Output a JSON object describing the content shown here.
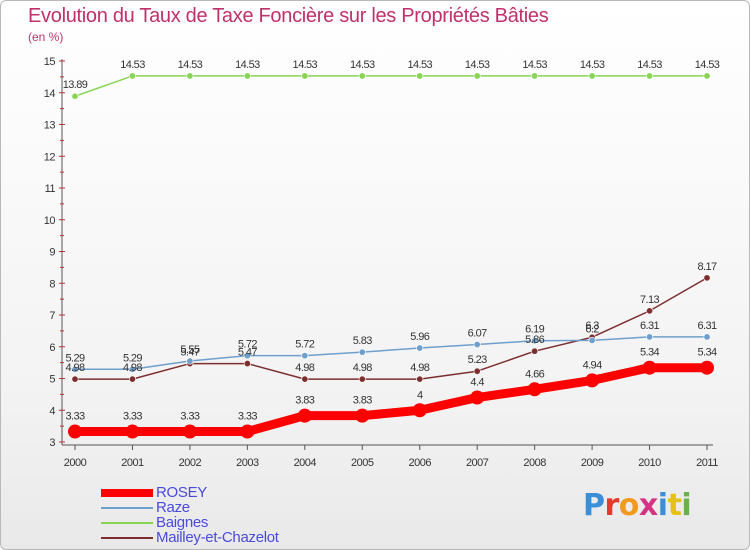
{
  "title": "Evolution du Taux de Taxe Foncière sur les Propriétés Bâties",
  "unit": "(en %)",
  "logo": {
    "letters": [
      "P",
      "r",
      "o",
      "x",
      "i",
      "t",
      "i"
    ],
    "colors": [
      "#3a8fd6",
      "#e23b2c",
      "#f29a1f",
      "#d63384",
      "#3a8fd6",
      "#e5c114",
      "#6ab04c"
    ]
  },
  "chart_data": {
    "type": "line",
    "title": "Evolution du Taux de Taxe Foncière sur les Propriétés Bâties",
    "ylabel": "(en %)",
    "xlabel": "",
    "categories": [
      "2000",
      "2001",
      "2002",
      "2003",
      "2004",
      "2005",
      "2006",
      "2007",
      "2008",
      "2009",
      "2010",
      "2011"
    ],
    "ylim": [
      3,
      15
    ],
    "yticks": [
      "3",
      "4",
      "5",
      "6",
      "7",
      "8",
      "9",
      "10",
      "11",
      "12",
      "13",
      "14",
      "15"
    ],
    "grid": false,
    "legend": "bottom-left",
    "series": [
      {
        "name": "ROSEY",
        "color": "#ff0000",
        "width": 9,
        "marker": 7,
        "labelPos": "above",
        "values": [
          3.33,
          3.33,
          3.33,
          3.33,
          3.83,
          3.83,
          4,
          4.4,
          4.66,
          4.94,
          5.34,
          5.34
        ],
        "labels": [
          "3.33",
          "3.33",
          "3.33",
          "3.33",
          "3.83",
          "3.83",
          "4",
          "4.4",
          "4.66",
          "4.94",
          "5.34",
          "5.34"
        ]
      },
      {
        "name": "Raze",
        "color": "#6f9fcc",
        "width": 1.5,
        "marker": 3.2,
        "labelPos": "above",
        "values": [
          5.29,
          5.29,
          5.55,
          5.72,
          5.72,
          5.83,
          5.96,
          6.07,
          6.19,
          6.2,
          6.31,
          6.31
        ],
        "labels": [
          "5.29",
          "5.29",
          "5.55",
          "5.72",
          "5.72",
          "5.83",
          "5.96",
          "6.07",
          "6.19",
          "6.2",
          "6.31",
          "6.31"
        ]
      },
      {
        "name": "Baignes",
        "color": "#88d455",
        "width": 1.5,
        "marker": 3.2,
        "labelPos": "above",
        "values": [
          13.89,
          14.53,
          14.53,
          14.53,
          14.53,
          14.53,
          14.53,
          14.53,
          14.53,
          14.53,
          14.53,
          14.53
        ],
        "labels": [
          "13.89",
          "14.53",
          "14.53",
          "14.53",
          "14.53",
          "14.53",
          "14.53",
          "14.53",
          "14.53",
          "14.53",
          "14.53",
          "14.53"
        ]
      },
      {
        "name": "Mailley-et-Chazelot",
        "color": "#7d2e2e",
        "width": 1.5,
        "marker": 3.2,
        "labelPos": "above",
        "values": [
          4.98,
          4.98,
          5.47,
          5.47,
          4.98,
          4.98,
          4.98,
          5.23,
          5.86,
          6.3,
          7.13,
          8.17
        ],
        "labels": [
          "4.98",
          "4.98",
          "5.47",
          "5.47",
          "4.98",
          "4.98",
          "4.98",
          "5.23",
          "5.86",
          "6.3",
          "7.13",
          "8.17"
        ]
      }
    ]
  }
}
